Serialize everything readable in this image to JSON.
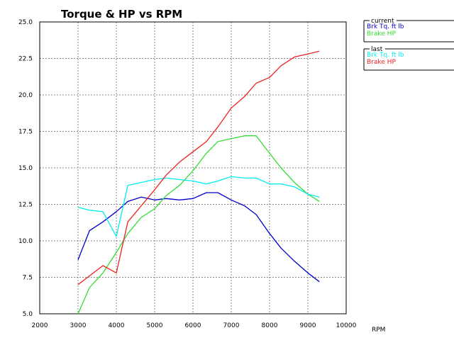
{
  "chart_data": {
    "type": "line",
    "title": "Torque & HP vs RPM",
    "xlabel": "RPM",
    "ylabel": "",
    "xlim": [
      2000,
      10000
    ],
    "ylim": [
      50,
      250
    ],
    "x_ticks": [
      "2000",
      "3000",
      "4000",
      "5000",
      "6000",
      "7000",
      "8000",
      "9000",
      "10000"
    ],
    "y_ticks": [
      "5.0",
      "7.5",
      "10.0",
      "12.5",
      "15.0",
      "17.5",
      "20.0",
      "22.5",
      "25.0"
    ],
    "grid": true,
    "legend_groups": [
      {
        "header": "current",
        "placement": "right-top",
        "series_indices": [
          0,
          1
        ]
      },
      {
        "header": "last",
        "placement": "right-middle",
        "series_indices": [
          2,
          3
        ]
      }
    ],
    "series": [
      {
        "name": "Brk Tq. ft lb",
        "color": "#0000cc",
        "x": [
          3000,
          3300,
          3650,
          4000,
          4300,
          4650,
          5000,
          5300,
          5650,
          6000,
          6350,
          6650,
          7000,
          7350,
          7650,
          8000,
          8300,
          8650,
          9000,
          9300
        ],
        "y": [
          87,
          107,
          113,
          120,
          127,
          130,
          128,
          129,
          128,
          129,
          133,
          133,
          128,
          124,
          118,
          105,
          95,
          86,
          78,
          72
        ]
      },
      {
        "name": "Brake HP",
        "color": "#33dd33",
        "x": [
          3000,
          3300,
          3650,
          4000,
          4300,
          4650,
          5000,
          5300,
          5650,
          6000,
          6350,
          6650,
          7000,
          7350,
          7650,
          8000,
          8300,
          8650,
          9000,
          9300
        ],
        "y": [
          50,
          68,
          78,
          92,
          105,
          116,
          122,
          131,
          138,
          148,
          160,
          168,
          170,
          172,
          172,
          160,
          150,
          140,
          132,
          127
        ]
      },
      {
        "name": "Brk Tq. ft lb",
        "color": "#00eeee",
        "x": [
          3000,
          3300,
          3650,
          4000,
          4300,
          4650,
          5000,
          5300,
          5650,
          6000,
          6350,
          6650,
          7000,
          7350,
          7650,
          8000,
          8300,
          8650,
          9000,
          9300
        ],
        "y": [
          123,
          121,
          120,
          103,
          138,
          140,
          142,
          143,
          142,
          141,
          139,
          141,
          144,
          143,
          143,
          139,
          139,
          137,
          132,
          130
        ]
      },
      {
        "name": "Brake HP",
        "color": "#ee2222",
        "x": [
          3000,
          3300,
          3650,
          4000,
          4300,
          4650,
          5000,
          5300,
          5650,
          6000,
          6350,
          6650,
          7000,
          7350,
          7650,
          8000,
          8300,
          8650,
          9000,
          9300
        ],
        "y": [
          70,
          76,
          83,
          78,
          113,
          124,
          135,
          145,
          154,
          161,
          168,
          178,
          191,
          199,
          208,
          212,
          220,
          226,
          228,
          230
        ]
      }
    ]
  }
}
